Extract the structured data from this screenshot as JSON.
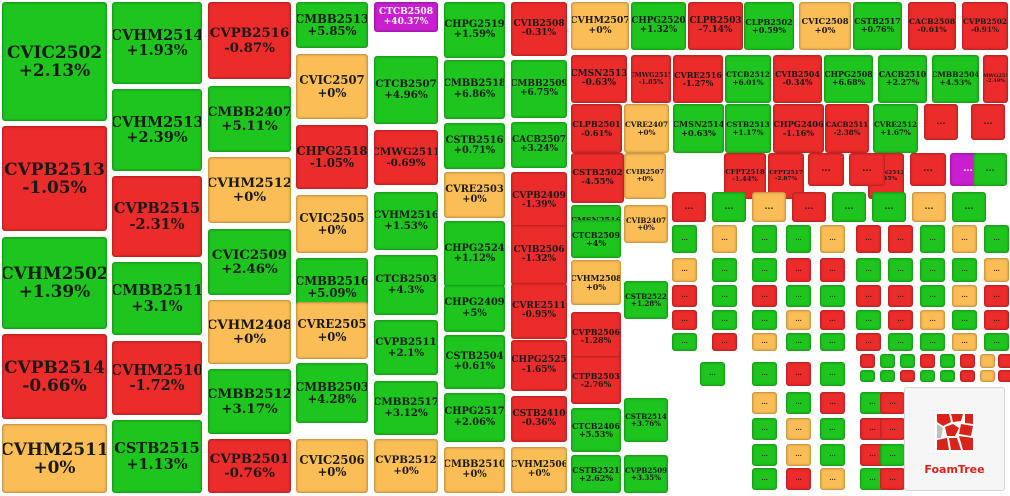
{
  "colors": {
    "up": "#1fc51f",
    "down": "#ec2b2b",
    "flat": "#fbbd55",
    "ceiling": "#c81fd0"
  },
  "tiles": [
    {
      "code": "CVIC2502",
      "change": "+2.13%",
      "trend": "up"
    },
    {
      "code": "CVPB2513",
      "change": "-1.05%",
      "trend": "down"
    },
    {
      "code": "CVHM2502",
      "change": "+1.39%",
      "trend": "up"
    },
    {
      "code": "CVPB2514",
      "change": "-0.66%",
      "trend": "down"
    },
    {
      "code": "CVHM2511",
      "change": "+0%",
      "trend": "flat"
    },
    {
      "code": "CVHM2514",
      "change": "+1.93%",
      "trend": "up"
    },
    {
      "code": "CVHM2513",
      "change": "+2.39%",
      "trend": "up"
    },
    {
      "code": "CVPB2515",
      "change": "-2.31%",
      "trend": "down"
    },
    {
      "code": "CMBB2511",
      "change": "+3.1%",
      "trend": "up"
    },
    {
      "code": "CVHM2510",
      "change": "-1.72%",
      "trend": "down"
    },
    {
      "code": "CSTB2515",
      "change": "+1.13%",
      "trend": "up"
    },
    {
      "code": "CVPB2516",
      "change": "-0.87%",
      "trend": "down"
    },
    {
      "code": "CMBB2407",
      "change": "+5.11%",
      "trend": "up"
    },
    {
      "code": "CVHM2512",
      "change": "+0%",
      "trend": "flat"
    },
    {
      "code": "CVIC2509",
      "change": "+2.46%",
      "trend": "up"
    },
    {
      "code": "CVHM2408",
      "change": "+0%",
      "trend": "flat"
    },
    {
      "code": "CMBB2512",
      "change": "+3.17%",
      "trend": "up"
    },
    {
      "code": "CVPB2501",
      "change": "-0.76%",
      "trend": "down"
    },
    {
      "code": "CMBB2513",
      "change": "+5.85%",
      "trend": "up"
    },
    {
      "code": "CVIC2507",
      "change": "+0%",
      "trend": "flat"
    },
    {
      "code": "CHPG2518",
      "change": "-1.05%",
      "trend": "down"
    },
    {
      "code": "CVIC2505",
      "change": "+0%",
      "trend": "flat"
    },
    {
      "code": "CMBB2516",
      "change": "+5.09%",
      "trend": "up"
    },
    {
      "code": "CVRE2505",
      "change": "+0%",
      "trend": "flat"
    },
    {
      "code": "CMBB2503",
      "change": "+4.28%",
      "trend": "up"
    },
    {
      "code": "CVIC2506",
      "change": "+0%",
      "trend": "flat"
    },
    {
      "code": "CTCB2508",
      "change": "+40.37%",
      "trend": "ceiling"
    },
    {
      "code": "CTCB2507",
      "change": "+4.96%",
      "trend": "up"
    },
    {
      "code": "CMWG2511",
      "change": "-0.69%",
      "trend": "down"
    },
    {
      "code": "CVHM2516",
      "change": "+1.53%",
      "trend": "up"
    },
    {
      "code": "CTCB2503",
      "change": "+4.3%",
      "trend": "up"
    },
    {
      "code": "CVPB2511",
      "change": "+2.1%",
      "trend": "up"
    },
    {
      "code": "CMBB2517",
      "change": "+3.12%",
      "trend": "up"
    },
    {
      "code": "CVPB2512",
      "change": "+0%",
      "trend": "flat"
    },
    {
      "code": "CHPG2519",
      "change": "+1.59%",
      "trend": "up"
    },
    {
      "code": "CMBB2518",
      "change": "+6.86%",
      "trend": "up"
    },
    {
      "code": "CSTB2516",
      "change": "+0.71%",
      "trend": "up"
    },
    {
      "code": "CVRE2503",
      "change": "+0%",
      "trend": "flat"
    },
    {
      "code": "CHPG2524",
      "change": "+1.12%",
      "trend": "up"
    },
    {
      "code": "CHPG2409",
      "change": "+5%",
      "trend": "up"
    },
    {
      "code": "CSTB2504",
      "change": "+0.61%",
      "trend": "up"
    },
    {
      "code": "CHPG2517",
      "change": "+2.06%",
      "trend": "up"
    },
    {
      "code": "CMBB2510",
      "change": "+0%",
      "trend": "flat"
    },
    {
      "code": "CVIB2508",
      "change": "-0.31%",
      "trend": "down"
    },
    {
      "code": "CMBB2509",
      "change": "+6.75%",
      "trend": "up"
    },
    {
      "code": "CACB2507",
      "change": "+3.24%",
      "trend": "up"
    },
    {
      "code": "CVPB2409",
      "change": "-1.39%",
      "trend": "down"
    },
    {
      "code": "CVIB2506",
      "change": "-1.32%",
      "trend": "down"
    },
    {
      "code": "CVRE2511",
      "change": "-0.95%",
      "trend": "down"
    },
    {
      "code": "CHPG2525",
      "change": "-1.65%",
      "trend": "down"
    },
    {
      "code": "CSTB2410",
      "change": "-0.36%",
      "trend": "down"
    },
    {
      "code": "CVHM2506",
      "change": "+0%",
      "trend": "flat"
    },
    {
      "code": "CVHM2507",
      "change": "+0%",
      "trend": "flat"
    },
    {
      "code": "CHPG2520",
      "change": "+1.32%",
      "trend": "up"
    },
    {
      "code": "CLPB2503",
      "change": "-7.14%",
      "trend": "down"
    },
    {
      "code": "CLPB2502",
      "change": "+0.59%",
      "trend": "up"
    },
    {
      "code": "CVIC2508",
      "change": "+0%",
      "trend": "flat"
    },
    {
      "code": "CSTB2517",
      "change": "+0.76%",
      "trend": "up"
    },
    {
      "code": "CACB2508",
      "change": "-0.61%",
      "trend": "down"
    },
    {
      "code": "CVPB2502",
      "change": "-0.91%",
      "trend": "down"
    },
    {
      "code": "CMSN2513",
      "change": "-0.63%",
      "trend": "down"
    },
    {
      "code": "CMWG2515",
      "change": "-1.85%",
      "trend": "down"
    },
    {
      "code": "CVRE2516",
      "change": "-1.27%",
      "trend": "down"
    },
    {
      "code": "CTCB2512",
      "change": "+6.01%",
      "trend": "up"
    },
    {
      "code": "CVIB2504",
      "change": "-0.34%",
      "trend": "down"
    },
    {
      "code": "CHPG2508",
      "change": "+6.68%",
      "trend": "up"
    },
    {
      "code": "CACB2510",
      "change": "+2.27%",
      "trend": "up"
    },
    {
      "code": "CMBB2504",
      "change": "+4.53%",
      "trend": "up"
    },
    {
      "code": "CMWG2512",
      "change": "-2.49%",
      "trend": "down"
    },
    {
      "code": "CLPB2501",
      "change": "-0.61%",
      "trend": "down"
    },
    {
      "code": "CVRE2407",
      "change": "+0%",
      "trend": "flat"
    },
    {
      "code": "CMSN2514",
      "change": "+0.63%",
      "trend": "up"
    },
    {
      "code": "CSTB2513",
      "change": "+1.17%",
      "trend": "up"
    },
    {
      "code": "CHPG2406",
      "change": "-1.16%",
      "trend": "down"
    },
    {
      "code": "CACB2511",
      "change": "-2.38%",
      "trend": "down"
    },
    {
      "code": "CVRE2512",
      "change": "+1.67%",
      "trend": "up"
    },
    {
      "code": "CSTB2502",
      "change": "-4.55%",
      "trend": "down"
    },
    {
      "code": "CVIB2507",
      "change": "+0%",
      "trend": "flat"
    },
    {
      "code": "CFPT2518",
      "change": "-1.44%",
      "trend": "down"
    },
    {
      "code": "CFPT2517",
      "change": "-2.87%",
      "trend": "down"
    },
    {
      "code": "CMSN2512",
      "change": "-2.45%",
      "trend": "down"
    },
    {
      "code": "CMSN2516",
      "change": "+0.63%",
      "trend": "up"
    },
    {
      "code": "CTCB2509",
      "change": "+4%",
      "trend": "up"
    },
    {
      "code": "CVHM2508",
      "change": "+0%",
      "trend": "flat"
    },
    {
      "code": "CVPB2506",
      "change": "-1.28%",
      "trend": "down"
    },
    {
      "code": "CTPB2503",
      "change": "-2.76%",
      "trend": "down"
    },
    {
      "code": "CTCB2406",
      "change": "+5.53%",
      "trend": "up"
    },
    {
      "code": "CSTB2521",
      "change": "+2.62%",
      "trend": "up"
    },
    {
      "code": "CVIB2407",
      "change": "+0%",
      "trend": "flat"
    },
    {
      "code": "CSTB2522",
      "change": "+1.28%",
      "trend": "up"
    },
    {
      "code": "CSTB2514",
      "change": "+3.76%",
      "trend": "up"
    },
    {
      "code": "CVPB2509",
      "change": "+3.35%",
      "trend": "up"
    }
  ],
  "small_tiles": {
    "label": "...",
    "trends": [
      "down",
      "down",
      "down",
      "down",
      "down",
      "ceiling",
      "up",
      "down",
      "up",
      "flat",
      "down",
      "up",
      "up",
      "flat",
      "up",
      "up",
      "flat",
      "up",
      "up",
      "flat",
      "down",
      "down",
      "up",
      "flat",
      "up",
      "flat",
      "up",
      "up",
      "down",
      "down",
      "up",
      "up",
      "up",
      "up",
      "flat",
      "down",
      "up",
      "down",
      "up",
      "up",
      "down",
      "down",
      "up",
      "flat",
      "down",
      "down",
      "up",
      "up",
      "flat",
      "down",
      "up",
      "down",
      "flat",
      "up",
      "down",
      "up",
      "down",
      "flat",
      "up",
      "up",
      "down",
      "up",
      "up",
      "flat",
      "up",
      "down",
      "up",
      "up",
      "down",
      "up",
      "down",
      "flat",
      "down",
      "up",
      "up",
      "down",
      "up",
      "up",
      "down",
      "flat",
      "down",
      "up",
      "up",
      "down",
      "up",
      "flat",
      "up",
      "down",
      "up",
      "down",
      "up",
      "flat",
      "up",
      "down",
      "down",
      "up",
      "flat",
      "up",
      "down",
      "up",
      "up",
      "down",
      "flat",
      "up",
      "down",
      "up",
      "up",
      "flat",
      "down",
      "up",
      "down",
      "up",
      "down",
      "flat",
      "up",
      "up",
      "down",
      "up",
      "flat",
      "down",
      "up",
      "down",
      "up",
      "up",
      "flat",
      "down",
      "up",
      "down",
      "flat",
      "up"
    ]
  },
  "logo": {
    "text": "FoamTree"
  }
}
